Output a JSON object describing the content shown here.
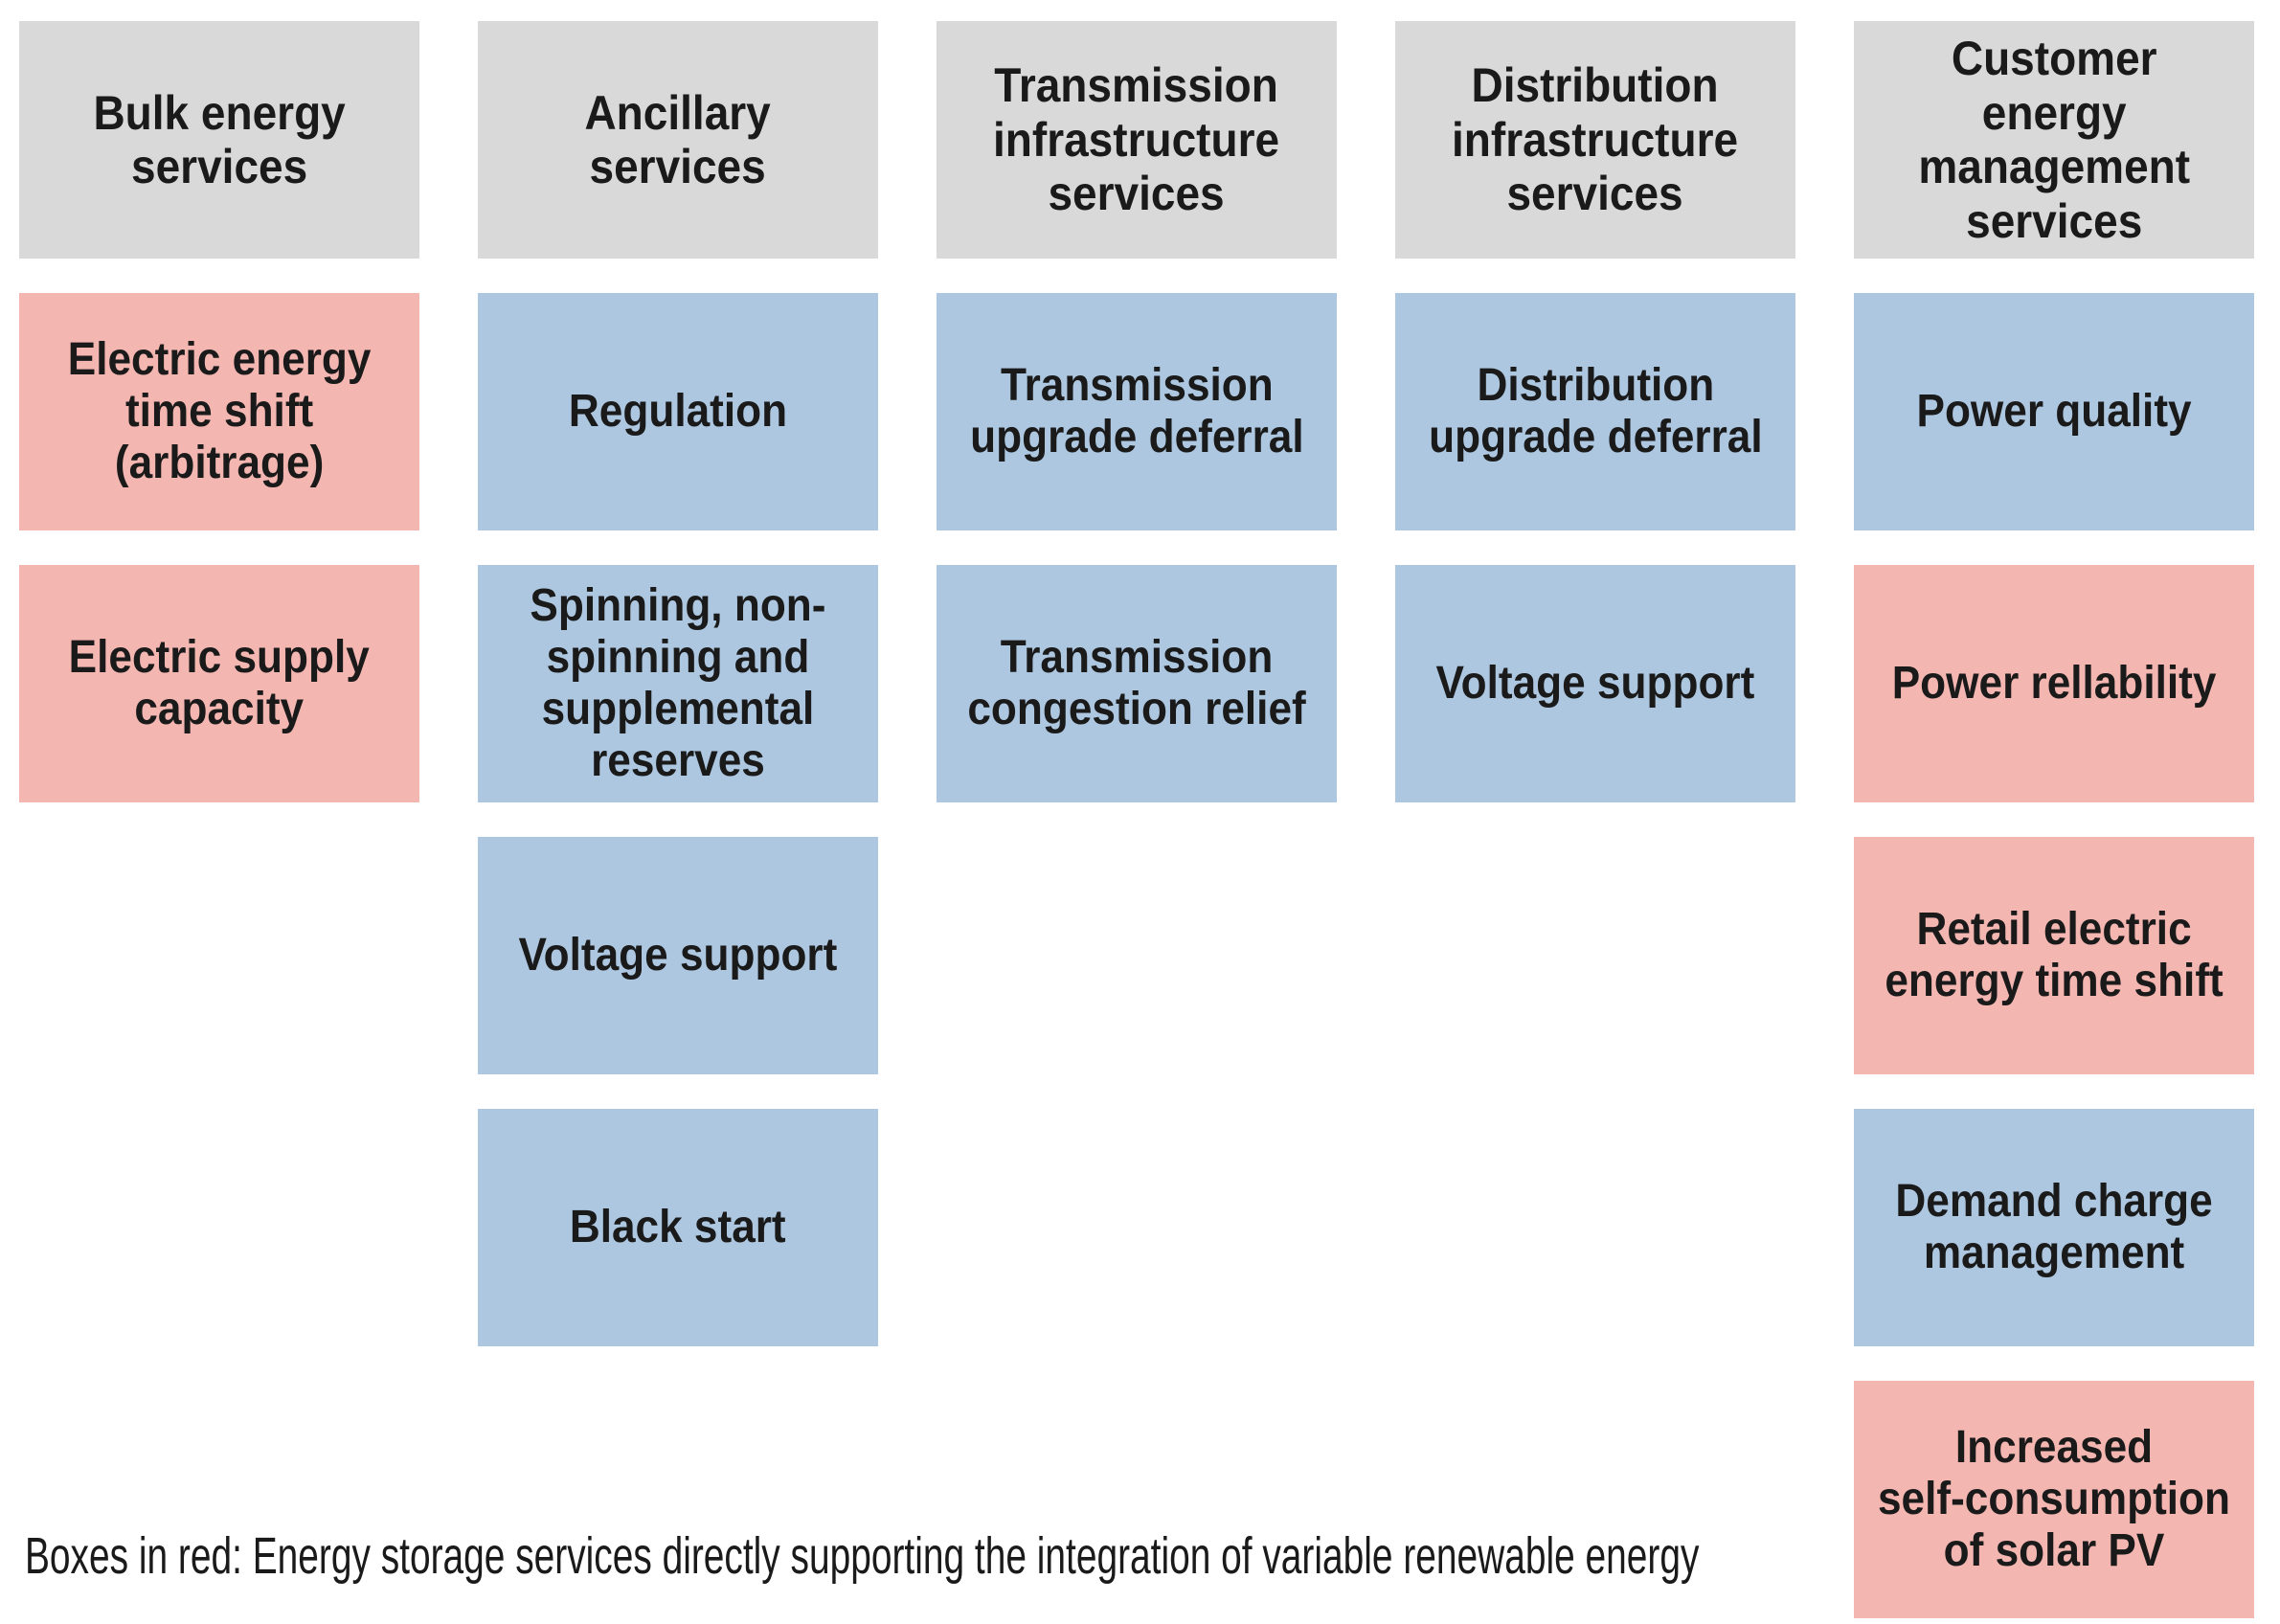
{
  "colors": {
    "header_bg": "#d9d9d9",
    "blue_box_bg": "#adc7e0",
    "red_box_bg": "#f3b6b1",
    "text": "#1a1a1a"
  },
  "legend": {
    "note": "Boxes in red: Energy storage services directly supporting the integration of variable renewable energy"
  },
  "columns": [
    {
      "header": "Bulk energy\nservices",
      "boxes": [
        {
          "label": "Electric energy\ntime shift\n(arbitrage)",
          "type": "red"
        },
        {
          "label": "Electric supply\ncapacity",
          "type": "red"
        }
      ]
    },
    {
      "header": "Ancillary\nservices",
      "boxes": [
        {
          "label": "Regulation",
          "type": "blue"
        },
        {
          "label": "Spinning, non-\nspinning and\nsupplemental\nreserves",
          "type": "blue"
        },
        {
          "label": "Voltage support",
          "type": "blue"
        },
        {
          "label": "Black start",
          "type": "blue"
        }
      ]
    },
    {
      "header": "Transmission\ninfrastructure\nservices",
      "boxes": [
        {
          "label": "Transmission\nupgrade deferral",
          "type": "blue"
        },
        {
          "label": "Transmission\ncongestion relief",
          "type": "blue"
        }
      ]
    },
    {
      "header": "Distribution\ninfrastructure\nservices",
      "boxes": [
        {
          "label": "Distribution\nupgrade deferral",
          "type": "blue"
        },
        {
          "label": "Voltage support",
          "type": "blue"
        }
      ]
    },
    {
      "header": "Customer\nenergy\nmanagement\nservices",
      "boxes": [
        {
          "label": "Power quality",
          "type": "blue"
        },
        {
          "label": "Power rellability",
          "type": "red"
        },
        {
          "label": "Retail electric\nenergy time shift",
          "type": "red"
        },
        {
          "label": "Demand charge\nmanagement",
          "type": "blue"
        },
        {
          "label": "Increased\nself-consumption\nof solar PV",
          "type": "red"
        }
      ]
    }
  ]
}
